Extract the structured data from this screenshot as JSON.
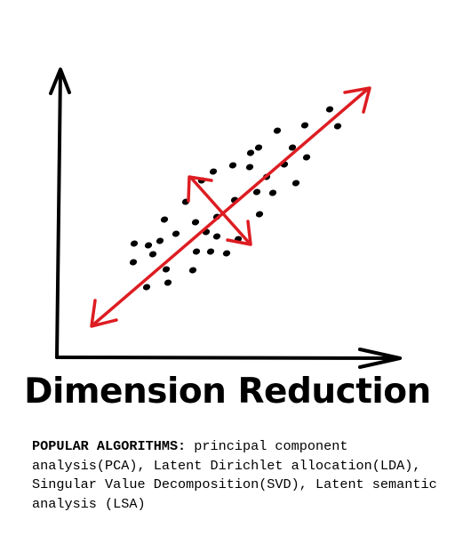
{
  "title": "Dimension Reduction",
  "caption": {
    "lead": "POPULAR ALGORITHMS:",
    "text": "principal component analysis(PCA), Latent Dirichlet allocation(LDA), Singular Value Decomposition(SVD), Latent semantic analysis (LSA)"
  },
  "colors": {
    "axis": "#000000",
    "points": "#000000",
    "arrows": "#dd1d22"
  },
  "icons": {
    "principal_arrow": "double-headed-arrow",
    "secondary_arrow": "double-headed-arrow"
  }
}
